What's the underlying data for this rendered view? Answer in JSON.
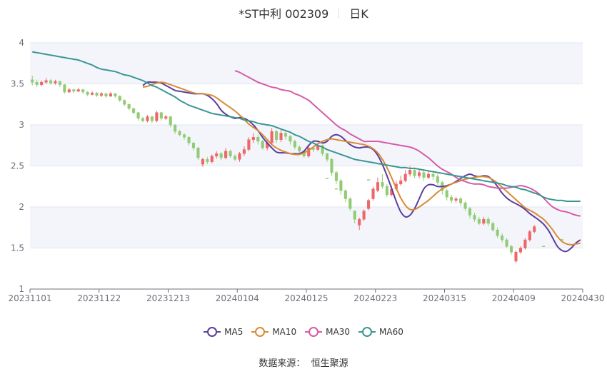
{
  "title": {
    "stock": "*ST中利 002309",
    "period": "日K"
  },
  "source": {
    "label": "数据来源：",
    "value": "恒生聚源"
  },
  "colors": {
    "up": "#ee6666",
    "down": "#91cc75",
    "grid_band": "#f3f5fb",
    "axis": "#6e7079"
  },
  "chart_data": {
    "type": "line",
    "subtype": "candlestick-with-moving-averages",
    "ylim": [
      1,
      4
    ],
    "yticks": [
      1,
      1.5,
      2,
      2.5,
      3,
      3.5,
      4
    ],
    "xticks": [
      "20231101",
      "20231122",
      "20231213",
      "20240104",
      "20240125",
      "20240223",
      "20240315",
      "20240409",
      "20240430"
    ],
    "n_days": 120,
    "legend_position": "bottom",
    "series": [
      {
        "name": "MA5",
        "color": "#5c3d9e",
        "values": [
          3.48,
          3.52,
          3.52,
          3.52,
          3.51,
          3.48,
          3.45,
          3.42,
          3.41,
          3.4,
          3.39,
          3.38,
          3.38,
          3.38,
          3.36,
          3.32,
          3.26,
          3.18,
          3.13,
          3.1,
          3.08,
          3.09,
          3.08,
          3.05,
          3.0,
          2.93,
          2.85,
          2.78,
          2.72,
          2.67,
          2.66,
          2.66,
          2.65,
          2.65,
          2.65,
          2.68,
          2.75,
          2.8,
          2.8,
          2.78,
          2.8,
          2.86,
          2.88,
          2.86,
          2.81,
          2.76,
          2.73,
          2.72,
          2.73,
          2.73,
          2.7,
          2.63,
          2.52,
          2.38,
          2.23,
          2.07,
          1.94,
          1.88,
          1.9,
          1.98,
          2.1,
          2.22,
          2.27,
          2.27,
          2.25,
          2.25,
          2.26,
          2.28,
          2.31,
          2.35,
          2.38,
          2.4,
          2.38,
          2.37,
          2.38,
          2.37,
          2.32,
          2.25,
          2.17,
          2.11,
          2.07,
          2.04,
          2.01,
          1.97,
          1.92,
          1.88,
          1.84,
          1.79,
          1.72,
          1.62,
          1.52,
          1.47,
          1.46,
          1.5,
          1.56,
          1.6
        ]
      },
      {
        "name": "MA10",
        "color": "#d88b36",
        "values": [
          3.46,
          3.47,
          3.49,
          3.51,
          3.52,
          3.51,
          3.49,
          3.47,
          3.45,
          3.43,
          3.41,
          3.39,
          3.38,
          3.38,
          3.37,
          3.36,
          3.33,
          3.29,
          3.25,
          3.21,
          3.17,
          3.12,
          3.07,
          3.01,
          2.97,
          2.93,
          2.88,
          2.82,
          2.76,
          2.72,
          2.69,
          2.67,
          2.65,
          2.64,
          2.64,
          2.66,
          2.69,
          2.73,
          2.77,
          2.8,
          2.82,
          2.83,
          2.82,
          2.81,
          2.8,
          2.79,
          2.78,
          2.77,
          2.76,
          2.74,
          2.71,
          2.66,
          2.58,
          2.48,
          2.36,
          2.23,
          2.11,
          2.02,
          1.97,
          1.97,
          2.0,
          2.04,
          2.08,
          2.13,
          2.18,
          2.22,
          2.25,
          2.28,
          2.3,
          2.32,
          2.34,
          2.35,
          2.36,
          2.37,
          2.37,
          2.36,
          2.33,
          2.29,
          2.24,
          2.19,
          2.14,
          2.09,
          2.04,
          1.99,
          1.96,
          1.93,
          1.89,
          1.85,
          1.79,
          1.72,
          1.64,
          1.58,
          1.55,
          1.54,
          1.55,
          1.56
        ]
      },
      {
        "name": "MA30",
        "color": "#d65ba7",
        "values": [
          3.66,
          3.64,
          3.61,
          3.58,
          3.55,
          3.52,
          3.5,
          3.48,
          3.46,
          3.45,
          3.43,
          3.42,
          3.41,
          3.38,
          3.36,
          3.33,
          3.3,
          3.25,
          3.2,
          3.15,
          3.1,
          3.05,
          3.0,
          2.96,
          2.93,
          2.89,
          2.86,
          2.83,
          2.8,
          2.8,
          2.8,
          2.8,
          2.79,
          2.78,
          2.77,
          2.76,
          2.75,
          2.74,
          2.73,
          2.71,
          2.68,
          2.64,
          2.6,
          2.55,
          2.5,
          2.46,
          2.43,
          2.4,
          2.36,
          2.33,
          2.31,
          2.29,
          2.28,
          2.28,
          2.27,
          2.25,
          2.24,
          2.23,
          2.23,
          2.23,
          2.24,
          2.25,
          2.26,
          2.25,
          2.23,
          2.2,
          2.16,
          2.11,
          2.05,
          2.0,
          1.97,
          1.95,
          1.94,
          1.92,
          1.9,
          1.89
        ]
      },
      {
        "name": "MA60",
        "color": "#3a9693",
        "values": [
          3.89,
          3.88,
          3.87,
          3.86,
          3.85,
          3.84,
          3.83,
          3.82,
          3.81,
          3.8,
          3.79,
          3.77,
          3.75,
          3.73,
          3.7,
          3.68,
          3.67,
          3.66,
          3.65,
          3.63,
          3.61,
          3.6,
          3.58,
          3.56,
          3.54,
          3.51,
          3.48,
          3.46,
          3.43,
          3.4,
          3.37,
          3.34,
          3.3,
          3.27,
          3.24,
          3.22,
          3.2,
          3.18,
          3.16,
          3.14,
          3.13,
          3.12,
          3.11,
          3.1,
          3.09,
          3.08,
          3.06,
          3.05,
          3.04,
          3.02,
          3.01,
          3.0,
          2.99,
          2.97,
          2.95,
          2.93,
          2.91,
          2.88,
          2.86,
          2.83,
          2.8,
          2.78,
          2.75,
          2.73,
          2.7,
          2.68,
          2.66,
          2.64,
          2.62,
          2.6,
          2.58,
          2.57,
          2.56,
          2.55,
          2.54,
          2.53,
          2.52,
          2.51,
          2.5,
          2.49,
          2.48,
          2.48,
          2.47,
          2.47,
          2.46,
          2.45,
          2.44,
          2.43,
          2.42,
          2.41,
          2.4,
          2.39,
          2.38,
          2.37,
          2.36,
          2.35,
          2.34,
          2.33,
          2.32,
          2.31,
          2.3,
          2.29,
          2.28,
          2.26,
          2.25,
          2.24,
          2.22,
          2.21,
          2.19,
          2.17,
          2.15,
          2.12,
          2.1,
          2.09,
          2.08,
          2.08,
          2.07,
          2.07,
          2.07,
          2.07
        ]
      }
    ]
  },
  "candles": [
    [
      3.55,
      3.52,
      3.6,
      3.48
    ],
    [
      3.52,
      3.49,
      3.55,
      3.46
    ],
    [
      3.49,
      3.52,
      3.54,
      3.47
    ],
    [
      3.52,
      3.54,
      3.57,
      3.5
    ],
    [
      3.54,
      3.51,
      3.56,
      3.49
    ],
    [
      3.51,
      3.53,
      3.55,
      3.49
    ],
    [
      3.53,
      3.49,
      3.54,
      3.46
    ],
    [
      3.49,
      3.4,
      3.5,
      3.38
    ],
    [
      3.4,
      3.43,
      3.45,
      3.39
    ],
    [
      3.43,
      3.41,
      3.44,
      3.39
    ],
    [
      3.41,
      3.43,
      3.45,
      3.4
    ],
    [
      3.43,
      3.4,
      3.44,
      3.38
    ],
    [
      3.4,
      3.37,
      3.41,
      3.35
    ],
    [
      3.37,
      3.39,
      3.41,
      3.36
    ],
    [
      3.39,
      3.36,
      3.4,
      3.34
    ],
    [
      3.36,
      3.38,
      3.4,
      3.34
    ],
    [
      3.38,
      3.35,
      3.39,
      3.33
    ],
    [
      3.35,
      3.38,
      3.4,
      3.34
    ],
    [
      3.38,
      3.35,
      3.39,
      3.33
    ],
    [
      3.35,
      3.3,
      3.36,
      3.28
    ],
    [
      3.3,
      3.25,
      3.31,
      3.23
    ],
    [
      3.25,
      3.2,
      3.26,
      3.18
    ],
    [
      3.2,
      3.15,
      3.21,
      3.13
    ],
    [
      3.15,
      3.08,
      3.16,
      3.05
    ],
    [
      3.08,
      3.05,
      3.1,
      3.03
    ],
    [
      3.05,
      3.1,
      3.12,
      3.03
    ],
    [
      3.1,
      3.05,
      3.11,
      3.02
    ],
    [
      3.05,
      3.15,
      3.17,
      3.03
    ],
    [
      3.15,
      3.08,
      3.16,
      3.05
    ],
    [
      3.08,
      3.1,
      3.12,
      3.06
    ],
    [
      3.1,
      3.0,
      3.11,
      2.97
    ],
    [
      3.0,
      2.92,
      3.01,
      2.89
    ],
    [
      2.92,
      2.88,
      2.94,
      2.86
    ],
    [
      2.88,
      2.85,
      2.9,
      2.82
    ],
    [
      2.85,
      2.78,
      2.86,
      2.75
    ],
    [
      2.78,
      2.72,
      2.79,
      2.69
    ],
    [
      2.72,
      2.6,
      2.73,
      2.57
    ],
    [
      2.52,
      2.58,
      2.6,
      2.49
    ],
    [
      2.58,
      2.55,
      2.61,
      2.52
    ],
    [
      2.55,
      2.62,
      2.64,
      2.53
    ],
    [
      2.62,
      2.65,
      2.68,
      2.59
    ],
    [
      2.65,
      2.6,
      2.67,
      2.57
    ],
    [
      2.6,
      2.68,
      2.72,
      2.58
    ],
    [
      2.68,
      2.62,
      2.7,
      2.6
    ],
    [
      2.62,
      2.58,
      2.64,
      2.56
    ],
    [
      2.58,
      2.65,
      2.67,
      2.55
    ],
    [
      2.65,
      2.7,
      2.74,
      2.62
    ],
    [
      2.7,
      2.82,
      2.85,
      2.68
    ],
    [
      2.82,
      2.85,
      2.9,
      2.78
    ],
    [
      2.85,
      2.8,
      2.88,
      2.76
    ],
    [
      2.8,
      2.72,
      2.82,
      2.7
    ],
    [
      2.72,
      2.78,
      2.82,
      2.69
    ],
    [
      2.78,
      2.92,
      2.96,
      2.75
    ],
    [
      2.92,
      2.82,
      2.94,
      2.78
    ],
    [
      2.82,
      2.9,
      2.94,
      2.79
    ],
    [
      2.9,
      2.86,
      2.92,
      2.82
    ],
    [
      2.86,
      2.8,
      2.88,
      2.76
    ],
    [
      2.8,
      2.73,
      2.82,
      2.7
    ],
    [
      2.73,
      2.68,
      2.75,
      2.65
    ],
    [
      2.68,
      2.62,
      2.7,
      2.6
    ],
    [
      2.62,
      2.72,
      2.75,
      2.6
    ],
    [
      2.72,
      2.7,
      2.74,
      2.67
    ],
    [
      2.7,
      2.75,
      2.78,
      2.68
    ],
    [
      2.75,
      2.65,
      2.76,
      2.62
    ],
    [
      2.65,
      2.58,
      2.66,
      2.55
    ],
    [
      2.58,
      2.42,
      2.6,
      2.38
    ],
    [
      2.42,
      2.32,
      2.44,
      2.28
    ],
    [
      2.32,
      2.2,
      2.34,
      2.15
    ],
    [
      2.2,
      2.1,
      2.21,
      2.06
    ],
    [
      2.1,
      1.98,
      2.12,
      1.95
    ],
    [
      1.95,
      1.85,
      1.96,
      1.8
    ],
    [
      1.78,
      1.85,
      1.87,
      1.72
    ],
    [
      1.85,
      1.95,
      1.97,
      1.83
    ],
    [
      1.98,
      2.08,
      2.1,
      1.96
    ],
    [
      2.1,
      2.22,
      2.25,
      2.08
    ],
    [
      2.2,
      2.3,
      2.36,
      2.18
    ],
    [
      2.3,
      2.25,
      2.4,
      2.22
    ],
    [
      2.25,
      2.15,
      2.28,
      2.12
    ],
    [
      2.15,
      2.22,
      2.26,
      2.13
    ],
    [
      2.22,
      2.28,
      2.32,
      2.2
    ],
    [
      2.28,
      2.32,
      2.38,
      2.26
    ],
    [
      2.32,
      2.4,
      2.45,
      2.3
    ],
    [
      2.4,
      2.45,
      2.5,
      2.37
    ],
    [
      2.45,
      2.38,
      2.48,
      2.35
    ],
    [
      2.38,
      2.42,
      2.46,
      2.35
    ],
    [
      2.42,
      2.36,
      2.45,
      2.32
    ],
    [
      2.36,
      2.4,
      2.44,
      2.34
    ],
    [
      2.4,
      2.37,
      2.43,
      2.33
    ],
    [
      2.37,
      2.3,
      2.4,
      2.27
    ],
    [
      2.3,
      2.2,
      2.32,
      2.15
    ],
    [
      2.2,
      2.12,
      2.22,
      2.08
    ],
    [
      2.12,
      2.08,
      2.15,
      2.05
    ],
    [
      2.08,
      2.1,
      2.12,
      2.05
    ],
    [
      2.1,
      2.05,
      2.12,
      2.01
    ],
    [
      2.05,
      1.98,
      2.07,
      1.95
    ],
    [
      1.98,
      1.9,
      2.0,
      1.86
    ],
    [
      1.9,
      1.85,
      1.93,
      1.82
    ],
    [
      1.85,
      1.8,
      1.88,
      1.78
    ],
    [
      1.8,
      1.85,
      1.88,
      1.78
    ],
    [
      1.85,
      1.8,
      1.88,
      1.77
    ],
    [
      1.8,
      1.72,
      1.82,
      1.7
    ],
    [
      1.72,
      1.65,
      1.75,
      1.62
    ],
    [
      1.65,
      1.6,
      1.68,
      1.57
    ],
    [
      1.6,
      1.52,
      1.62,
      1.5
    ],
    [
      1.52,
      1.45,
      1.54,
      1.42
    ],
    [
      1.34,
      1.45,
      1.47,
      1.32
    ],
    [
      1.45,
      1.5,
      1.52,
      1.43
    ],
    [
      1.5,
      1.6,
      1.62,
      1.48
    ],
    [
      1.6,
      1.7,
      1.72,
      1.58
    ],
    [
      1.7,
      1.76,
      1.78,
      1.68
    ]
  ],
  "dashes": [
    [
      64,
      2.35
    ],
    [
      66,
      2.22
    ],
    [
      73,
      2.33
    ],
    [
      96,
      2.28
    ],
    [
      111,
      1.52
    ],
    [
      115,
      1.6
    ]
  ]
}
